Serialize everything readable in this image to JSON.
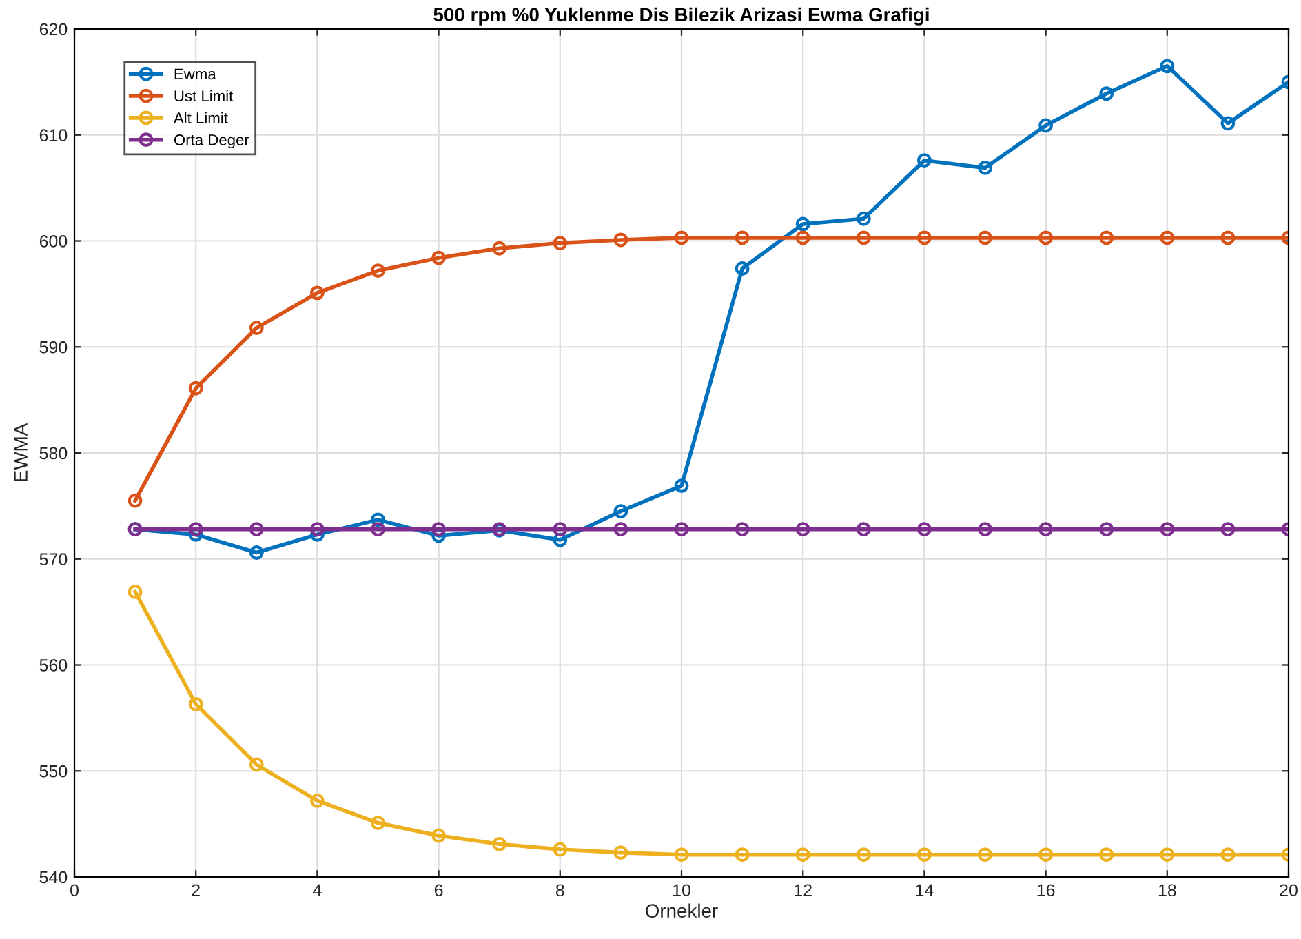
{
  "chart_data": {
    "type": "line",
    "title": "500 rpm %0 Yuklenme Dis Bilezik Arizasi Ewma Grafigi",
    "xlabel": "Ornekler",
    "ylabel": "EWMA",
    "x": [
      1,
      2,
      3,
      4,
      5,
      6,
      7,
      8,
      9,
      10,
      11,
      12,
      13,
      14,
      15,
      16,
      17,
      18,
      19,
      20
    ],
    "series": [
      {
        "name": "Ewma",
        "color": "#0072bd",
        "values": [
          572.8,
          572.3,
          570.6,
          572.3,
          573.7,
          572.2,
          572.7,
          571.8,
          574.5,
          576.9,
          597.4,
          601.6,
          602.1,
          607.6,
          606.9,
          610.9,
          613.9,
          616.5,
          611.1,
          615.0
        ]
      },
      {
        "name": "Ust Limit",
        "color": "#d95319",
        "values": [
          575.5,
          586.1,
          591.8,
          595.1,
          597.2,
          598.4,
          599.3,
          599.8,
          600.1,
          600.3,
          600.3,
          600.3,
          600.3,
          600.3,
          600.3,
          600.3,
          600.3,
          600.3,
          600.3,
          600.3
        ]
      },
      {
        "name": "Alt Limit",
        "color": "#edb120",
        "values": [
          566.9,
          556.3,
          550.6,
          547.2,
          545.1,
          543.9,
          543.1,
          542.6,
          542.3,
          542.1,
          542.1,
          542.1,
          542.1,
          542.1,
          542.1,
          542.1,
          542.1,
          542.1,
          542.1,
          542.1
        ]
      },
      {
        "name": "Orta Deger",
        "color": "#7e2f8e",
        "values": [
          572.8,
          572.8,
          572.8,
          572.8,
          572.8,
          572.8,
          572.8,
          572.8,
          572.8,
          572.8,
          572.8,
          572.8,
          572.8,
          572.8,
          572.8,
          572.8,
          572.8,
          572.8,
          572.8,
          572.8
        ]
      }
    ],
    "xlim": [
      0,
      20
    ],
    "xticks": [
      0,
      2,
      4,
      6,
      8,
      10,
      12,
      14,
      16,
      18,
      20
    ],
    "ylim": [
      540,
      620
    ],
    "yticks": [
      540,
      550,
      560,
      570,
      580,
      590,
      600,
      610,
      620
    ],
    "grid": true,
    "legend": "top left",
    "marker": "circle",
    "line_style": "solid"
  }
}
